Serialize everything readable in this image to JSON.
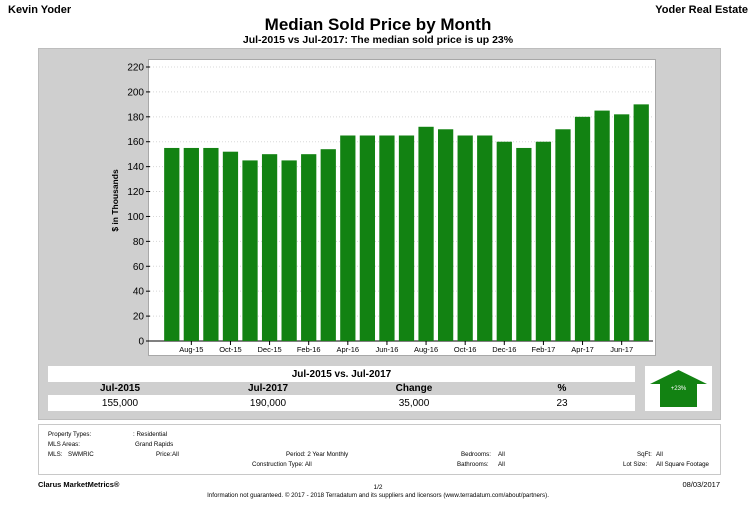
{
  "header": {
    "agent": "Kevin Yoder",
    "brokerage": "Yoder Real Estate",
    "title": "Median Sold Price by Month",
    "subtitle": "Jul-2015 vs Jul-2017: The median sold price is up 23%"
  },
  "chart_data": {
    "type": "bar",
    "ylabel": "$ in Thousands",
    "ylim": [
      0,
      220
    ],
    "yticks": [
      0,
      20,
      40,
      60,
      80,
      100,
      120,
      140,
      160,
      180,
      200,
      220
    ],
    "grid": true,
    "bar_color": "#128212",
    "categories": [
      "Jul-15",
      "Aug-15",
      "Sep-15",
      "Oct-15",
      "Nov-15",
      "Dec-15",
      "Jan-16",
      "Feb-16",
      "Mar-16",
      "Apr-16",
      "May-16",
      "Jun-16",
      "Jul-16",
      "Aug-16",
      "Sep-16",
      "Oct-16",
      "Nov-16",
      "Dec-16",
      "Jan-17",
      "Feb-17",
      "Mar-17",
      "Apr-17",
      "May-17",
      "Jun-17",
      "Jul-17"
    ],
    "values": [
      155,
      155,
      155,
      152,
      145,
      150,
      145,
      150,
      154,
      165,
      165,
      165,
      165,
      172,
      170,
      165,
      165,
      160,
      155,
      160,
      170,
      180,
      185,
      182,
      190
    ],
    "tick_labels": [
      {
        "index": 1,
        "label": "Aug-15"
      },
      {
        "index": 3,
        "label": "Oct-15"
      },
      {
        "index": 5,
        "label": "Dec-15"
      },
      {
        "index": 7,
        "label": "Feb-16"
      },
      {
        "index": 9,
        "label": "Apr-16"
      },
      {
        "index": 11,
        "label": "Jun-16"
      },
      {
        "index": 13,
        "label": "Aug-16"
      },
      {
        "index": 15,
        "label": "Oct-16"
      },
      {
        "index": 17,
        "label": "Dec-16"
      },
      {
        "index": 19,
        "label": "Feb-17"
      },
      {
        "index": 21,
        "label": "Apr-17"
      },
      {
        "index": 23,
        "label": "Jun-17"
      }
    ]
  },
  "summary": {
    "title": "Jul-2015 vs. Jul-2017",
    "headers": [
      "Jul-2015",
      "Jul-2017",
      "Change",
      "%"
    ],
    "values": [
      "155,000",
      "190,000",
      "35,000",
      "23"
    ],
    "badge": "+23%",
    "badge_color": "#128212"
  },
  "criteria": {
    "property_types_label": "Property Types:",
    "property_types_value": ": Residential",
    "mls_areas_label": "MLS Areas:",
    "mls_areas_value": "Grand Rapids",
    "mls_label": "MLS:",
    "mls_value": "SWMRIC",
    "price": "Price:",
    "price_value": "All",
    "period": "Period: 2 Year Monthly",
    "construction": "Construction Type: All",
    "bedrooms": "Bedrooms:",
    "bedrooms_value": "All",
    "bathrooms": "Bathrooms:",
    "bathrooms_value": "All",
    "sqft": "SqFt:",
    "sqft_value": "All",
    "lotsize": "Lot Size:",
    "lotsize_value": "All Square Footage"
  },
  "footer": {
    "brand": "Clarus MarketMetrics®",
    "page": "1/2",
    "date": "08/03/2017",
    "disclaimer": "Information not guaranteed. © 2017 - 2018 Terradatum and its suppliers and licensors (www.terradatum.com/about/partners)."
  }
}
